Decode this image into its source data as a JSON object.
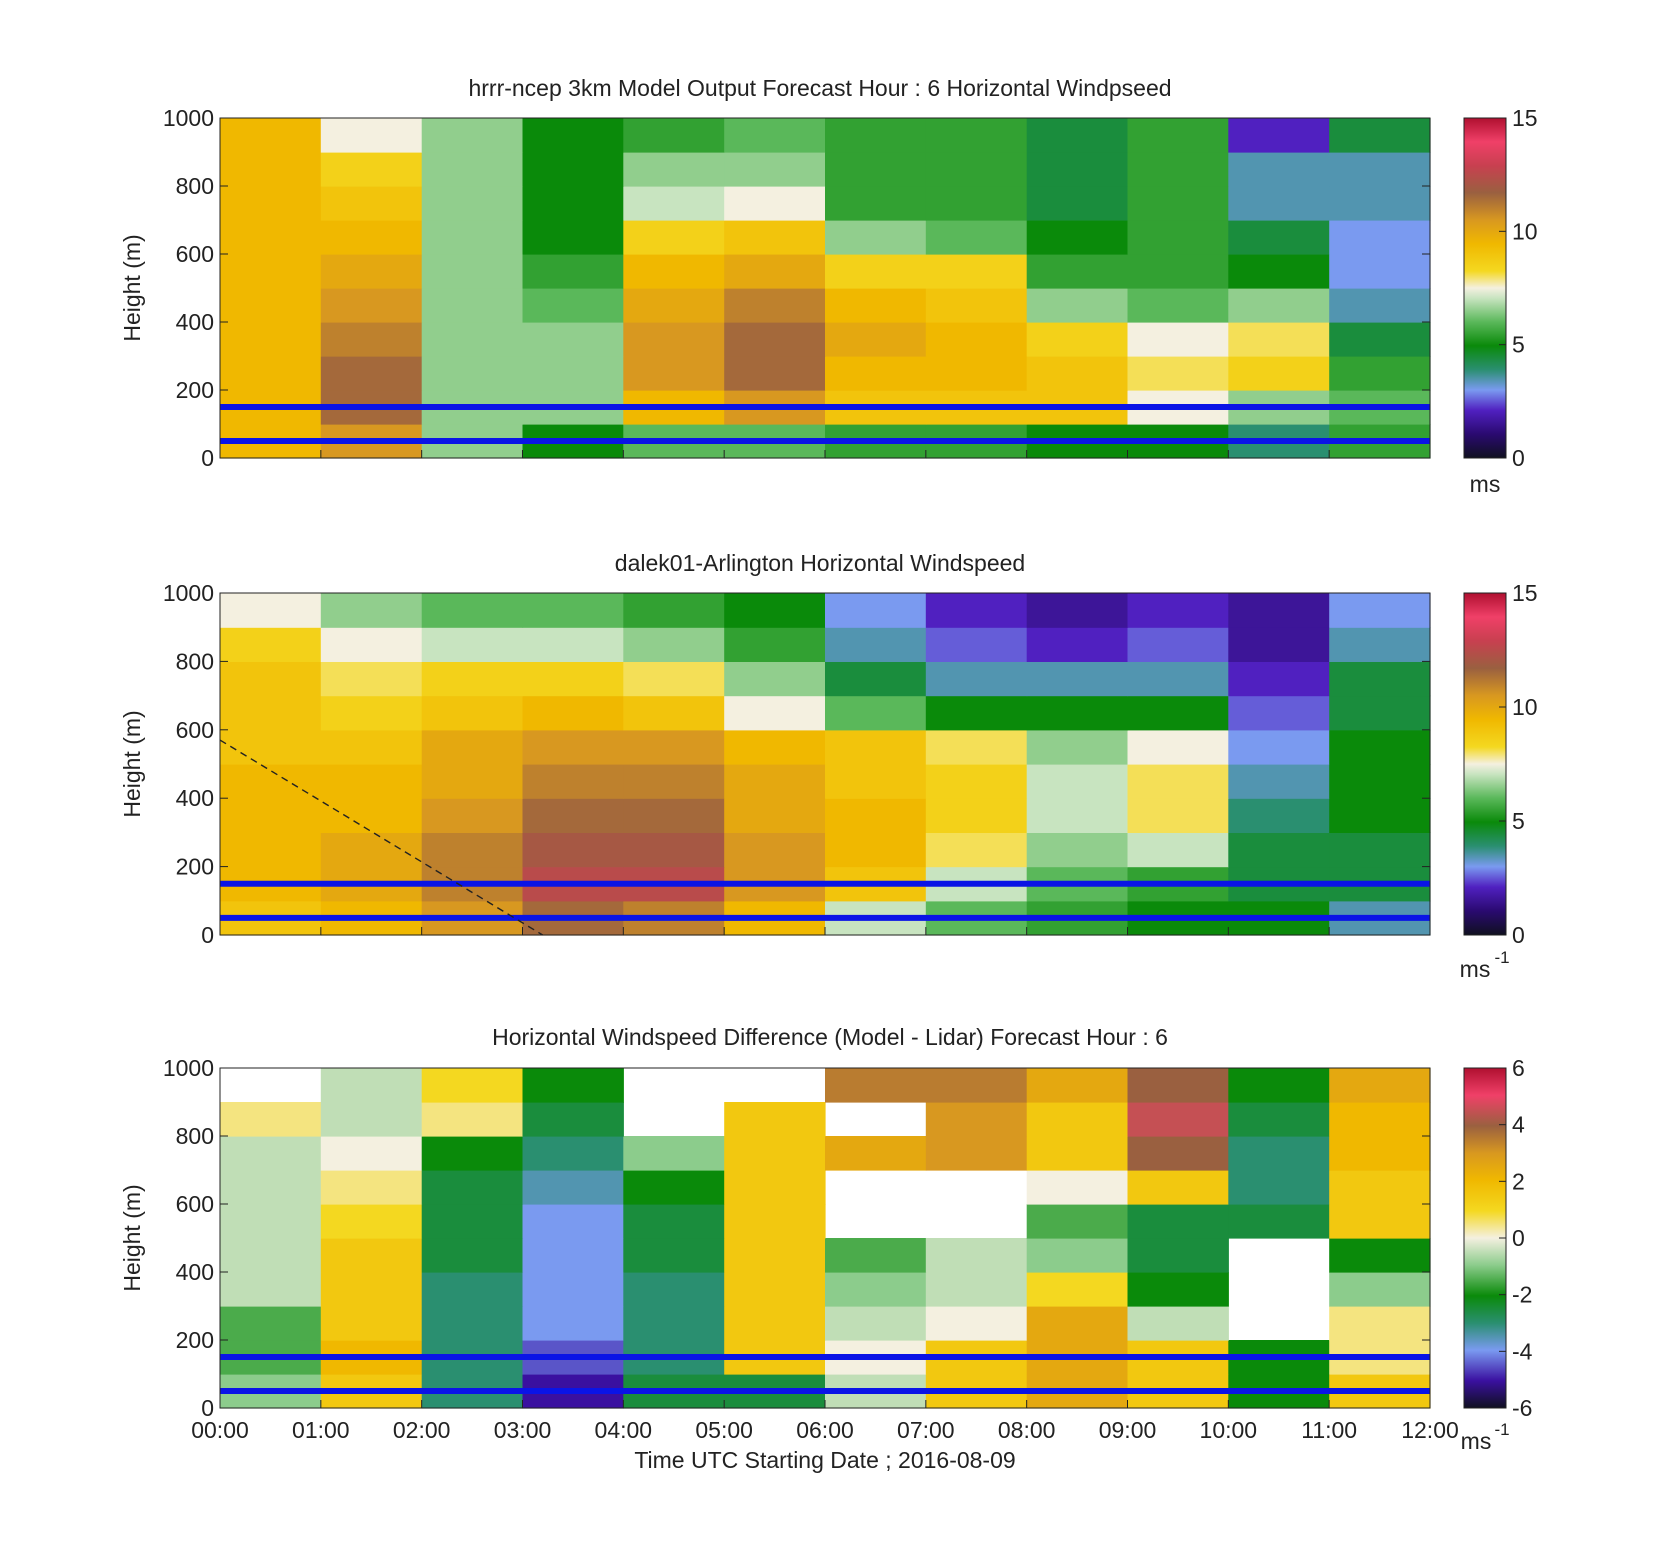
{
  "figure": {
    "xlabel": "Time UTC  Starting Date ; 2016-08-09",
    "x_ticks": [
      "00:00",
      "01:00",
      "02:00",
      "03:00",
      "04:00",
      "05:00",
      "06:00",
      "07:00",
      "08:00",
      "09:00",
      "10:00",
      "11:00",
      "12:00"
    ]
  },
  "chart_data": [
    {
      "type": "heatmap",
      "title": "hrrr-ncep 3km Model Output   Forecast Hour : 6 Horizontal Windpseed",
      "ylabel": "Height (m)",
      "ylim": [
        0,
        1000
      ],
      "y_ticks": [
        "0",
        "200",
        "400",
        "600",
        "800",
        "1000"
      ],
      "colorbar": {
        "range": [
          0,
          15
        ],
        "ticks": [
          "0",
          "5",
          "10",
          "15"
        ],
        "unit": "ms"
      },
      "reference_lines_m": [
        150,
        50
      ],
      "hours": [
        0,
        1,
        2,
        3,
        4,
        5,
        6,
        7,
        8,
        9,
        10,
        11,
        12
      ],
      "height_levels_m": [
        50,
        150,
        250,
        350,
        450,
        550,
        650,
        750,
        850,
        950
      ],
      "windspeed_ms": [
        [
          9.5,
          10.5,
          6.5,
          5.0,
          6.0,
          6.0,
          5.5,
          5.5,
          5.0,
          5.0,
          4.0,
          5.5
        ],
        [
          9.5,
          11.5,
          6.5,
          6.5,
          9.5,
          10.5,
          9.0,
          9.0,
          9.0,
          7.5,
          6.5,
          6.0
        ],
        [
          9.5,
          11.5,
          6.5,
          6.5,
          10.5,
          11.5,
          9.5,
          9.5,
          9.0,
          8.0,
          8.5,
          5.5
        ],
        [
          9.5,
          11.0,
          6.5,
          6.5,
          10.5,
          11.5,
          10.0,
          9.5,
          8.5,
          7.5,
          8.0,
          4.5
        ],
        [
          9.5,
          10.5,
          6.5,
          6.0,
          10.0,
          11.0,
          9.5,
          9.0,
          6.5,
          6.0,
          6.5,
          3.5
        ],
        [
          9.5,
          10.0,
          6.5,
          5.5,
          9.5,
          10.0,
          8.5,
          8.5,
          5.5,
          5.5,
          5.0,
          3.0
        ],
        [
          9.5,
          9.5,
          6.5,
          5.0,
          8.5,
          9.0,
          6.5,
          6.0,
          5.0,
          5.5,
          4.5,
          3.0
        ],
        [
          9.5,
          9.0,
          6.5,
          5.0,
          7.0,
          7.5,
          5.5,
          5.5,
          4.5,
          5.5,
          3.5,
          3.5
        ],
        [
          9.5,
          8.5,
          6.5,
          5.0,
          6.5,
          6.5,
          5.5,
          5.5,
          4.5,
          5.5,
          3.5,
          3.5
        ],
        [
          9.5,
          7.5,
          6.5,
          5.0,
          5.5,
          6.0,
          5.5,
          5.5,
          4.5,
          5.5,
          2.0,
          4.5
        ]
      ]
    },
    {
      "type": "heatmap",
      "title": "dalek01-Arlington  Horizontal Windspeed",
      "ylabel": "Height (m)",
      "ylim": [
        0,
        1000
      ],
      "y_ticks": [
        "0",
        "200",
        "400",
        "600",
        "800",
        "1000"
      ],
      "colorbar": {
        "range": [
          0,
          15
        ],
        "ticks": [
          "0",
          "5",
          "10",
          "15"
        ],
        "unit": "ms",
        "unit_exponent": "-1"
      },
      "reference_lines_m": [
        150,
        50
      ],
      "annotation_line": {
        "from": [
          0,
          570
        ],
        "to": [
          3.2,
          0
        ],
        "style": "dashed"
      },
      "hours": [
        0,
        1,
        2,
        3,
        4,
        5,
        6,
        7,
        8,
        9,
        10,
        11,
        12
      ],
      "height_levels_m": [
        50,
        150,
        250,
        350,
        450,
        550,
        650,
        750,
        850,
        950
      ],
      "windspeed_ms": [
        [
          9.0,
          9.5,
          10.5,
          11.5,
          11.0,
          9.5,
          7.0,
          6.0,
          5.5,
          5.0,
          5.0,
          3.5
        ],
        [
          9.5,
          10.0,
          11.0,
          12.5,
          12.5,
          10.5,
          9.0,
          7.0,
          6.0,
          5.5,
          4.5,
          4.5
        ],
        [
          9.5,
          10.0,
          11.0,
          12.0,
          12.0,
          10.5,
          9.5,
          8.0,
          6.5,
          7.0,
          4.5,
          4.5
        ],
        [
          9.5,
          9.5,
          10.5,
          11.5,
          11.5,
          10.0,
          9.5,
          8.5,
          7.0,
          8.0,
          4.0,
          5.0
        ],
        [
          9.5,
          9.5,
          10.0,
          11.0,
          11.0,
          10.0,
          9.0,
          8.5,
          7.0,
          8.0,
          3.5,
          5.0
        ],
        [
          9.0,
          9.0,
          10.0,
          10.5,
          10.5,
          9.5,
          9.0,
          8.0,
          6.5,
          7.5,
          3.0,
          5.0
        ],
        [
          9.0,
          8.5,
          9.0,
          9.5,
          9.0,
          7.5,
          6.0,
          5.0,
          5.0,
          5.0,
          2.5,
          4.5
        ],
        [
          9.0,
          8.0,
          8.5,
          8.5,
          8.0,
          6.5,
          4.5,
          3.5,
          3.5,
          3.5,
          2.0,
          4.5
        ],
        [
          8.5,
          7.5,
          7.0,
          7.0,
          6.5,
          5.5,
          3.5,
          2.5,
          2.0,
          2.5,
          1.5,
          3.5
        ],
        [
          7.5,
          6.5,
          6.0,
          6.0,
          5.5,
          5.0,
          3.0,
          2.0,
          1.5,
          2.0,
          1.5,
          3.0
        ]
      ]
    },
    {
      "type": "heatmap",
      "title": "Horizontal Windspeed Difference (Model - Lidar) Forecast Hour : 6",
      "ylabel": "Height (m)",
      "ylim": [
        0,
        1000
      ],
      "y_ticks": [
        "0",
        "200",
        "400",
        "600",
        "800",
        "1000"
      ],
      "colorbar": {
        "range": [
          -6,
          6
        ],
        "ticks": [
          "-6",
          "-4",
          "-2",
          "0",
          "2",
          "4",
          "6"
        ],
        "unit": "ms",
        "unit_exponent": "-1"
      },
      "reference_lines_m": [
        150,
        50
      ],
      "hours": [
        0,
        1,
        2,
        3,
        4,
        5,
        6,
        7,
        8,
        9,
        10,
        11,
        12
      ],
      "height_levels_m": [
        50,
        150,
        250,
        350,
        450,
        550,
        650,
        750,
        850,
        950
      ],
      "difference_ms": [
        [
          -1.0,
          1.5,
          -3.0,
          -5.0,
          -2.5,
          -2.5,
          -0.5,
          1.5,
          2.5,
          1.5,
          -2.0,
          1.5
        ],
        [
          -1.5,
          2.0,
          -3.0,
          -4.5,
          -3.0,
          1.5,
          0.0,
          1.5,
          2.5,
          1.5,
          -2.0,
          0.5
        ],
        [
          -1.5,
          1.5,
          -3.0,
          -4.0,
          -3.0,
          1.5,
          -0.5,
          0.0,
          2.5,
          -0.5,
          null,
          0.5
        ],
        [
          -0.5,
          1.5,
          -3.0,
          -4.0,
          -3.0,
          1.5,
          -1.0,
          -0.5,
          1.0,
          -2.0,
          null,
          -1.0
        ],
        [
          -0.5,
          1.5,
          -2.5,
          -4.0,
          -2.5,
          1.5,
          -1.5,
          -0.5,
          -1.0,
          -2.5,
          null,
          -2.0
        ],
        [
          -0.5,
          1.0,
          -2.5,
          -4.0,
          -2.5,
          1.5,
          null,
          null,
          -1.5,
          -2.5,
          -2.5,
          1.5
        ],
        [
          -0.5,
          0.5,
          -2.5,
          -3.5,
          -2.0,
          1.5,
          null,
          null,
          0.0,
          1.5,
          -3.0,
          1.5
        ],
        [
          -0.5,
          0.0,
          -2.0,
          -3.0,
          -1.0,
          1.5,
          2.5,
          3.0,
          1.5,
          4.0,
          -3.0,
          2.0
        ],
        [
          0.5,
          -0.5,
          0.5,
          -2.5,
          null,
          1.5,
          null,
          3.0,
          1.5,
          4.5,
          -2.5,
          2.0
        ],
        [
          null,
          -0.5,
          1.0,
          -2.0,
          null,
          null,
          3.5,
          3.5,
          2.5,
          4.0,
          -2.0,
          2.5
        ]
      ]
    }
  ]
}
